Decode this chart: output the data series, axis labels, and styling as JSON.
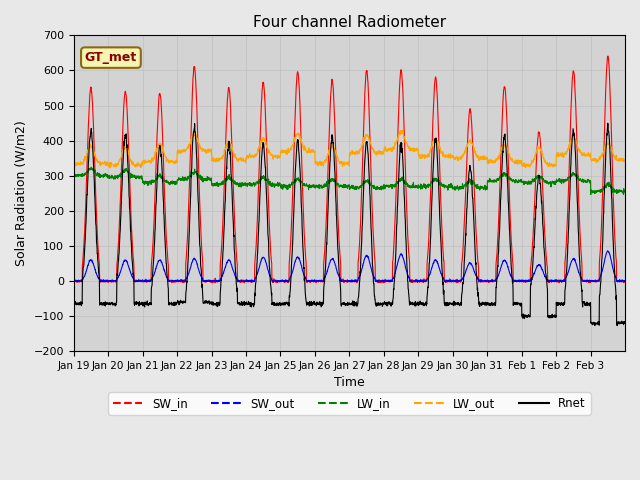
{
  "title": "Four channel Radiometer",
  "xlabel": "Time",
  "ylabel": "Solar Radiation (W/m2)",
  "ylim": [
    -200,
    700
  ],
  "yticks": [
    -200,
    -100,
    0,
    100,
    200,
    300,
    400,
    500,
    600,
    700
  ],
  "background_color": "#e8e8e8",
  "plot_bg_color": "#d3d3d3",
  "annotation_text": "GT_met",
  "annotation_bg": "#f5f5b0",
  "annotation_border": "#8b6914",
  "x_labels": [
    "Jan 19",
    "Jan 20",
    "Jan 21",
    "Jan 22",
    "Jan 23",
    "Jan 24",
    "Jan 25",
    "Jan 26",
    "Jan 27",
    "Jan 28",
    "Jan 29",
    "Jan 30",
    "Jan 31",
    "Feb 1",
    "Feb 2",
    "Feb 3"
  ],
  "num_days": 16,
  "legend_entries": [
    "SW_in",
    "SW_out",
    "LW_in",
    "LW_out",
    "Rnet"
  ],
  "line_colors": [
    "red",
    "blue",
    "green",
    "orange",
    "black"
  ],
  "sw_in_peaks": [
    550,
    540,
    535,
    610,
    550,
    565,
    595,
    570,
    600,
    600,
    580,
    488,
    555,
    425,
    600,
    640
  ],
  "sw_out_peaks": [
    70,
    70,
    70,
    75,
    70,
    80,
    80,
    75,
    85,
    90,
    70,
    60,
    70,
    55,
    75,
    100
  ],
  "lw_in_base": [
    300,
    295,
    280,
    290,
    275,
    275,
    270,
    270,
    265,
    270,
    270,
    265,
    285,
    280,
    285,
    255
  ],
  "lw_out_base": [
    335,
    330,
    340,
    370,
    345,
    355,
    370,
    335,
    365,
    375,
    355,
    350,
    340,
    330,
    360,
    345
  ],
  "rnet_night": [
    -65,
    -65,
    -65,
    -60,
    -65,
    -65,
    -65,
    -65,
    -65,
    -65,
    -65,
    -65,
    -65,
    -100,
    -65,
    -120
  ],
  "grid_color": "#bbbbbb"
}
